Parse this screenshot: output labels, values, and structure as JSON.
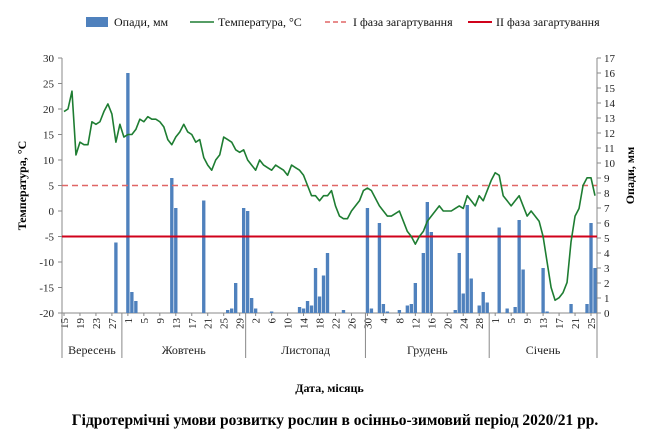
{
  "chart_data": {
    "type": "bar+line",
    "legend": {
      "placement": "top",
      "items": [
        {
          "label": "Опади, мм",
          "kind": "bar",
          "color": "#4f81bd"
        },
        {
          "label": "Температура, °С",
          "kind": "line",
          "color": "#1e7d32"
        },
        {
          "label": "І фаза загартування",
          "kind": "dashed",
          "color": "#e06666"
        },
        {
          "label": "ІІ фаза загартування",
          "kind": "solid",
          "color": "#d0021b"
        }
      ]
    },
    "left_axis": {
      "label": "Температура, °С",
      "min": -20,
      "max": 30,
      "step": 5,
      "ticks": [
        "-20",
        "-15",
        "-10",
        "-5",
        "0",
        "5",
        "10",
        "15",
        "20",
        "25",
        "30"
      ]
    },
    "right_axis": {
      "label": "Опади, мм",
      "min": 0,
      "max": 17,
      "step": 1,
      "ticks": [
        "0",
        "1",
        "2",
        "3",
        "4",
        "5",
        "6",
        "7",
        "8",
        "9",
        "10",
        "11",
        "12",
        "13",
        "14",
        "15",
        "16",
        "17"
      ]
    },
    "x_axis": {
      "label": "Дата, місяць",
      "tick_labels": [
        "15",
        "19",
        "23",
        "27",
        "1",
        "5",
        "9",
        "13",
        "17",
        "21",
        "25",
        "29",
        "2",
        "6",
        "10",
        "14",
        "18",
        "22",
        "26",
        "30",
        "4",
        "8",
        "12",
        "16",
        "20",
        "24",
        "28",
        "1",
        "5",
        "9",
        "13",
        "17",
        "21",
        "25"
      ],
      "tick_days": [
        0,
        4,
        8,
        12,
        16,
        20,
        24,
        28,
        32,
        36,
        40,
        44,
        48,
        52,
        56,
        60,
        64,
        68,
        72,
        76,
        80,
        84,
        88,
        92,
        96,
        100,
        104,
        108,
        112,
        116,
        120,
        124,
        128,
        132
      ],
      "months": [
        {
          "name": "Вересень",
          "start": 0,
          "end": 15
        },
        {
          "name": "Жовтень",
          "start": 15,
          "end": 46
        },
        {
          "name": "Листопад",
          "start": 46,
          "end": 76
        },
        {
          "name": "Грудень",
          "start": 76,
          "end": 107
        },
        {
          "name": "Січень",
          "start": 107,
          "end": 134
        }
      ],
      "days_total": 134
    },
    "phase_lines": {
      "phase1_temp": 5,
      "phase2_temp": -5
    },
    "precipitation": [
      [
        13,
        4.7
      ],
      [
        16,
        16
      ],
      [
        17,
        1.4
      ],
      [
        18,
        0.8
      ],
      [
        27,
        9
      ],
      [
        28,
        7
      ],
      [
        35,
        7.5
      ],
      [
        41,
        0.2
      ],
      [
        42,
        0.3
      ],
      [
        43,
        2
      ],
      [
        45,
        7
      ],
      [
        46,
        6.8
      ],
      [
        47,
        1
      ],
      [
        48,
        0.3
      ],
      [
        52,
        0.1
      ],
      [
        59,
        0.4
      ],
      [
        60,
        0.3
      ],
      [
        61,
        0.8
      ],
      [
        62,
        0.5
      ],
      [
        63,
        3
      ],
      [
        64,
        1.1
      ],
      [
        65,
        2.5
      ],
      [
        66,
        4
      ],
      [
        70,
        0.2
      ],
      [
        76,
        7
      ],
      [
        77,
        0.3
      ],
      [
        79,
        6
      ],
      [
        80,
        0.6
      ],
      [
        81,
        0.1
      ],
      [
        84,
        0.2
      ],
      [
        86,
        0.5
      ],
      [
        87,
        0.6
      ],
      [
        88,
        2
      ],
      [
        90,
        4
      ],
      [
        91,
        7.4
      ],
      [
        92,
        5.4
      ],
      [
        98,
        0.2
      ],
      [
        99,
        4
      ],
      [
        100,
        1.3
      ],
      [
        101,
        7.2
      ],
      [
        102,
        2.3
      ],
      [
        104,
        0.5
      ],
      [
        105,
        1.4
      ],
      [
        106,
        0.7
      ],
      [
        109,
        5.7
      ],
      [
        111,
        0.3
      ],
      [
        113,
        0.4
      ],
      [
        114,
        6.2
      ],
      [
        115,
        2.9
      ],
      [
        120,
        3
      ],
      [
        121,
        0.1
      ],
      [
        127,
        0.6
      ],
      [
        131,
        0.6
      ],
      [
        132,
        6
      ],
      [
        133,
        3
      ]
    ],
    "temperature": [
      [
        0,
        19.5
      ],
      [
        1,
        20
      ],
      [
        2,
        23.5
      ],
      [
        3,
        11
      ],
      [
        4,
        13.5
      ],
      [
        5,
        13
      ],
      [
        6,
        13
      ],
      [
        7,
        17.5
      ],
      [
        8,
        17
      ],
      [
        9,
        17.5
      ],
      [
        10,
        19.5
      ],
      [
        11,
        21
      ],
      [
        12,
        19
      ],
      [
        13,
        13.5
      ],
      [
        14,
        17
      ],
      [
        15,
        14.5
      ],
      [
        16,
        15
      ],
      [
        17,
        15
      ],
      [
        18,
        16
      ],
      [
        19,
        18
      ],
      [
        20,
        17.5
      ],
      [
        21,
        18.5
      ],
      [
        22,
        18
      ],
      [
        23,
        18
      ],
      [
        24,
        17.5
      ],
      [
        25,
        16.5
      ],
      [
        26,
        14
      ],
      [
        27,
        13
      ],
      [
        28,
        14.5
      ],
      [
        29,
        15.5
      ],
      [
        30,
        17
      ],
      [
        31,
        15.5
      ],
      [
        32,
        15
      ],
      [
        33,
        13.5
      ],
      [
        34,
        14
      ],
      [
        35,
        10.5
      ],
      [
        36,
        9
      ],
      [
        37,
        8
      ],
      [
        38,
        10
      ],
      [
        39,
        11
      ],
      [
        40,
        14.5
      ],
      [
        41,
        14
      ],
      [
        42,
        13.5
      ],
      [
        43,
        12
      ],
      [
        44,
        11.5
      ],
      [
        45,
        12
      ],
      [
        46,
        10
      ],
      [
        47,
        9
      ],
      [
        48,
        8
      ],
      [
        49,
        10
      ],
      [
        50,
        9
      ],
      [
        51,
        8.5
      ],
      [
        52,
        8
      ],
      [
        53,
        9
      ],
      [
        54,
        8.5
      ],
      [
        55,
        8
      ],
      [
        56,
        7
      ],
      [
        57,
        9
      ],
      [
        58,
        8.5
      ],
      [
        59,
        8
      ],
      [
        60,
        7
      ],
      [
        61,
        5
      ],
      [
        62,
        3
      ],
      [
        63,
        3
      ],
      [
        64,
        2
      ],
      [
        65,
        3
      ],
      [
        66,
        3
      ],
      [
        67,
        4
      ],
      [
        68,
        1
      ],
      [
        69,
        -1
      ],
      [
        70,
        -1.5
      ],
      [
        71,
        -1.5
      ],
      [
        72,
        0
      ],
      [
        73,
        1
      ],
      [
        74,
        2
      ],
      [
        75,
        4
      ],
      [
        76,
        4.5
      ],
      [
        77,
        4
      ],
      [
        78,
        2.5
      ],
      [
        79,
        1
      ],
      [
        80,
        0
      ],
      [
        81,
        -1
      ],
      [
        82,
        -1
      ],
      [
        83,
        -0.5
      ],
      [
        84,
        0
      ],
      [
        85,
        -2
      ],
      [
        86,
        -4
      ],
      [
        87,
        -5
      ],
      [
        88,
        -6.5
      ],
      [
        89,
        -5
      ],
      [
        90,
        -4
      ],
      [
        91,
        -2
      ],
      [
        92,
        -1
      ],
      [
        93,
        0
      ],
      [
        94,
        1
      ],
      [
        95,
        0
      ],
      [
        96,
        0
      ],
      [
        97,
        0
      ],
      [
        98,
        0.5
      ],
      [
        99,
        1
      ],
      [
        100,
        0.5
      ],
      [
        101,
        3
      ],
      [
        102,
        2
      ],
      [
        103,
        1
      ],
      [
        104,
        3
      ],
      [
        105,
        2
      ],
      [
        106,
        4
      ],
      [
        107,
        6
      ],
      [
        108,
        7.5
      ],
      [
        109,
        7
      ],
      [
        110,
        3
      ],
      [
        111,
        2
      ],
      [
        112,
        1
      ],
      [
        113,
        2
      ],
      [
        114,
        3
      ],
      [
        115,
        1
      ],
      [
        116,
        -1
      ],
      [
        117,
        0
      ],
      [
        118,
        -1
      ],
      [
        119,
        -2
      ],
      [
        120,
        -5
      ],
      [
        121,
        -10
      ],
      [
        122,
        -15
      ],
      [
        123,
        -17.5
      ],
      [
        124,
        -17
      ],
      [
        125,
        -16
      ],
      [
        126,
        -14
      ],
      [
        127,
        -6
      ],
      [
        128,
        -1
      ],
      [
        129,
        0.5
      ],
      [
        130,
        5
      ],
      [
        131,
        6.5
      ],
      [
        132,
        6.5
      ],
      [
        133,
        3
      ]
    ]
  },
  "caption": "Гідротермічні умови розвитку рослин в осінньо-зимовий період 2020/21 рр."
}
